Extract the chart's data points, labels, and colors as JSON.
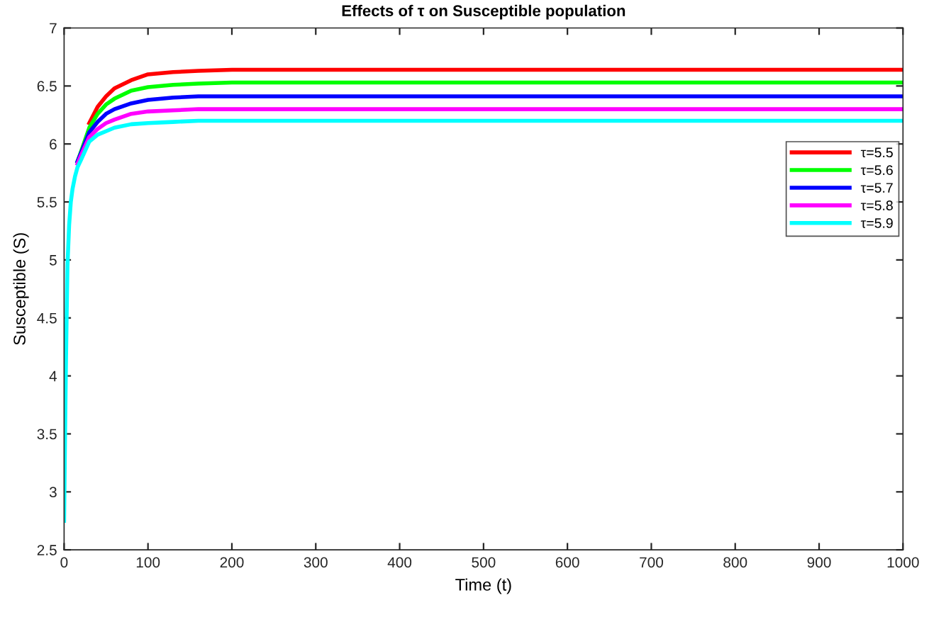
{
  "chart_data": {
    "type": "line",
    "title": "Effects of τ on Susceptible population",
    "xlabel": "Time (t)",
    "ylabel": "Susceptible (S)",
    "x": [
      0,
      1,
      2,
      3,
      4,
      6,
      8,
      10,
      13,
      16,
      20,
      30,
      40,
      50,
      60,
      80,
      100,
      130,
      160,
      200,
      300,
      1000
    ],
    "series": [
      {
        "name": "τ=5.5",
        "color": "#ff0000",
        "values": [
          null,
          null,
          null,
          null,
          null,
          null,
          null,
          null,
          null,
          null,
          null,
          6.18,
          6.32,
          6.41,
          6.48,
          6.55,
          6.6,
          6.62,
          6.63,
          6.64,
          6.64,
          6.64
        ]
      },
      {
        "name": "τ=5.6",
        "color": "#00ff00",
        "values": [
          null,
          null,
          null,
          null,
          null,
          null,
          null,
          null,
          null,
          5.85,
          5.93,
          6.14,
          6.26,
          6.34,
          6.39,
          6.46,
          6.49,
          6.51,
          6.52,
          6.53,
          6.53,
          6.53
        ]
      },
      {
        "name": "τ=5.7",
        "color": "#0000ff",
        "values": [
          null,
          null,
          null,
          null,
          null,
          null,
          null,
          null,
          null,
          5.85,
          5.92,
          6.1,
          6.19,
          6.26,
          6.3,
          6.35,
          6.38,
          6.4,
          6.41,
          6.41,
          6.41,
          6.41
        ]
      },
      {
        "name": "τ=5.8",
        "color": "#ff00ff",
        "values": [
          null,
          null,
          null,
          null,
          null,
          null,
          null,
          null,
          null,
          5.83,
          5.9,
          6.06,
          6.13,
          6.18,
          6.21,
          6.26,
          6.28,
          6.29,
          6.3,
          6.3,
          6.3,
          6.3
        ]
      },
      {
        "name": "τ=5.9",
        "color": "#00ffff",
        "values": [
          2.75,
          3.4,
          4.0,
          4.5,
          4.95,
          5.3,
          5.5,
          5.61,
          5.72,
          5.8,
          5.86,
          6.02,
          6.08,
          6.11,
          6.14,
          6.17,
          6.18,
          6.19,
          6.2,
          6.2,
          6.2,
          6.2
        ]
      }
    ],
    "xlim": [
      0,
      1000
    ],
    "xticks": [
      0,
      100,
      200,
      300,
      400,
      500,
      600,
      700,
      800,
      900,
      1000
    ],
    "ylim": [
      2.5,
      7
    ],
    "yticks": [
      2.5,
      3,
      3.5,
      4,
      4.5,
      5,
      5.5,
      6,
      6.5,
      7
    ],
    "grid": false,
    "legend": "right",
    "marker": "none",
    "line_style": "solid"
  }
}
